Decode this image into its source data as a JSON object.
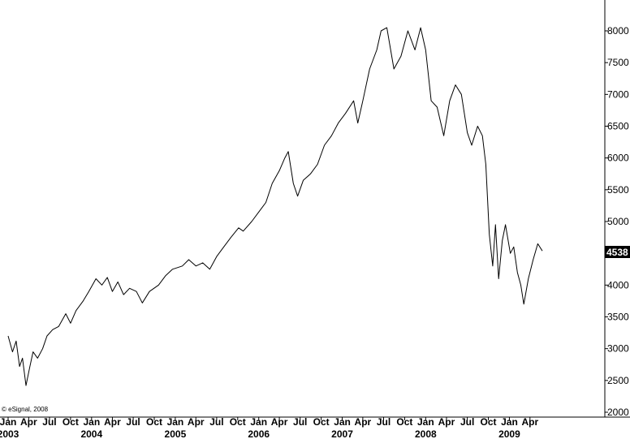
{
  "credit": "© eSignal, 2008",
  "chart_data": {
    "type": "line",
    "title": "",
    "xlabel": "",
    "ylabel": "",
    "ylim": [
      2000,
      8300
    ],
    "xlim": [
      "2003-01-01",
      "2009-05-25"
    ],
    "y_ticks": [
      2000,
      2500,
      3000,
      3500,
      4000,
      4500,
      5000,
      5500,
      6000,
      6500,
      7000,
      7500,
      8000
    ],
    "x_month_ticks": [
      {
        "label": "Jan",
        "date": "2003-01-01"
      },
      {
        "label": "Apr",
        "date": "2003-04-01"
      },
      {
        "label": "Jul",
        "date": "2003-07-01"
      },
      {
        "label": "Oct",
        "date": "2003-10-01"
      },
      {
        "label": "Jan",
        "date": "2004-01-01"
      },
      {
        "label": "Apr",
        "date": "2004-04-01"
      },
      {
        "label": "Jul",
        "date": "2004-07-01"
      },
      {
        "label": "Oct",
        "date": "2004-10-01"
      },
      {
        "label": "Jan",
        "date": "2005-01-01"
      },
      {
        "label": "Apr",
        "date": "2005-04-01"
      },
      {
        "label": "Jul",
        "date": "2005-07-01"
      },
      {
        "label": "Oct",
        "date": "2005-10-01"
      },
      {
        "label": "Jan",
        "date": "2006-01-01"
      },
      {
        "label": "Apr",
        "date": "2006-04-01"
      },
      {
        "label": "Jul",
        "date": "2006-07-01"
      },
      {
        "label": "Oct",
        "date": "2006-10-01"
      },
      {
        "label": "Jan",
        "date": "2007-01-01"
      },
      {
        "label": "Apr",
        "date": "2007-04-01"
      },
      {
        "label": "Jul",
        "date": "2007-07-01"
      },
      {
        "label": "Oct",
        "date": "2007-10-01"
      },
      {
        "label": "Jan",
        "date": "2008-01-01"
      },
      {
        "label": "Apr",
        "date": "2008-04-01"
      },
      {
        "label": "Jul",
        "date": "2008-07-01"
      },
      {
        "label": "Oct",
        "date": "2008-10-01"
      },
      {
        "label": "Jan",
        "date": "2009-01-01"
      },
      {
        "label": "Apr",
        "date": "2009-04-01"
      }
    ],
    "x_year_labels": [
      {
        "label": "2003",
        "date": "2003-01-01"
      },
      {
        "label": "2004",
        "date": "2004-01-01"
      },
      {
        "label": "2005",
        "date": "2005-01-01"
      },
      {
        "label": "2006",
        "date": "2006-01-01"
      },
      {
        "label": "2007",
        "date": "2007-01-01"
      },
      {
        "label": "2008",
        "date": "2008-01-01"
      },
      {
        "label": "2009",
        "date": "2009-01-01"
      }
    ],
    "last_value": "4538",
    "series": [
      {
        "color": "#000000",
        "points": [
          [
            "2003-01-01",
            3200
          ],
          [
            "2003-01-20",
            2950
          ],
          [
            "2003-02-05",
            3120
          ],
          [
            "2003-02-20",
            2720
          ],
          [
            "2003-03-05",
            2850
          ],
          [
            "2003-03-20",
            2420
          ],
          [
            "2003-04-05",
            2700
          ],
          [
            "2003-04-20",
            2950
          ],
          [
            "2003-05-10",
            2850
          ],
          [
            "2003-06-01",
            3000
          ],
          [
            "2003-06-20",
            3200
          ],
          [
            "2003-07-15",
            3300
          ],
          [
            "2003-08-10",
            3350
          ],
          [
            "2003-09-10",
            3550
          ],
          [
            "2003-10-01",
            3400
          ],
          [
            "2003-10-25",
            3600
          ],
          [
            "2003-11-25",
            3750
          ],
          [
            "2003-12-20",
            3900
          ],
          [
            "2004-01-20",
            4100
          ],
          [
            "2004-02-15",
            4000
          ],
          [
            "2004-03-10",
            4120
          ],
          [
            "2004-04-01",
            3900
          ],
          [
            "2004-04-25",
            4050
          ],
          [
            "2004-05-20",
            3850
          ],
          [
            "2004-06-15",
            3950
          ],
          [
            "2004-07-15",
            3900
          ],
          [
            "2004-08-10",
            3720
          ],
          [
            "2004-09-10",
            3900
          ],
          [
            "2004-10-20",
            4000
          ],
          [
            "2004-11-20",
            4150
          ],
          [
            "2004-12-20",
            4250
          ],
          [
            "2005-02-01",
            4300
          ],
          [
            "2005-03-01",
            4400
          ],
          [
            "2005-04-01",
            4300
          ],
          [
            "2005-05-01",
            4350
          ],
          [
            "2005-06-01",
            4250
          ],
          [
            "2005-07-01",
            4450
          ],
          [
            "2005-08-01",
            4600
          ],
          [
            "2005-09-01",
            4750
          ],
          [
            "2005-10-05",
            4900
          ],
          [
            "2005-10-25",
            4850
          ],
          [
            "2005-12-01",
            5000
          ],
          [
            "2006-01-01",
            5150
          ],
          [
            "2006-02-01",
            5300
          ],
          [
            "2006-03-01",
            5600
          ],
          [
            "2006-04-01",
            5800
          ],
          [
            "2006-04-25",
            6000
          ],
          [
            "2006-05-10",
            6100
          ],
          [
            "2006-06-01",
            5600
          ],
          [
            "2006-06-20",
            5400
          ],
          [
            "2006-07-15",
            5650
          ],
          [
            "2006-08-15",
            5750
          ],
          [
            "2006-09-15",
            5900
          ],
          [
            "2006-10-15",
            6200
          ],
          [
            "2006-11-15",
            6350
          ],
          [
            "2006-12-15",
            6550
          ],
          [
            "2007-01-15",
            6700
          ],
          [
            "2007-02-20",
            6900
          ],
          [
            "2007-03-10",
            6550
          ],
          [
            "2007-04-01",
            6900
          ],
          [
            "2007-05-01",
            7400
          ],
          [
            "2007-06-01",
            7700
          ],
          [
            "2007-06-20",
            8000
          ],
          [
            "2007-07-15",
            8050
          ],
          [
            "2007-08-15",
            7400
          ],
          [
            "2007-09-15",
            7600
          ],
          [
            "2007-10-15",
            8000
          ],
          [
            "2007-11-15",
            7700
          ],
          [
            "2007-12-10",
            8050
          ],
          [
            "2008-01-01",
            7700
          ],
          [
            "2008-01-25",
            6900
          ],
          [
            "2008-02-20",
            6800
          ],
          [
            "2008-03-20",
            6350
          ],
          [
            "2008-04-15",
            6900
          ],
          [
            "2008-05-10",
            7150
          ],
          [
            "2008-06-05",
            7000
          ],
          [
            "2008-07-01",
            6400
          ],
          [
            "2008-07-20",
            6200
          ],
          [
            "2008-08-15",
            6500
          ],
          [
            "2008-09-05",
            6350
          ],
          [
            "2008-09-20",
            5900
          ],
          [
            "2008-10-05",
            4800
          ],
          [
            "2008-10-20",
            4300
          ],
          [
            "2008-11-01",
            4950
          ],
          [
            "2008-11-15",
            4100
          ],
          [
            "2008-12-01",
            4700
          ],
          [
            "2008-12-15",
            4950
          ],
          [
            "2009-01-05",
            4500
          ],
          [
            "2009-01-20",
            4600
          ],
          [
            "2009-02-05",
            4200
          ],
          [
            "2009-02-20",
            4000
          ],
          [
            "2009-03-05",
            3700
          ],
          [
            "2009-03-25",
            4100
          ],
          [
            "2009-04-15",
            4400
          ],
          [
            "2009-05-05",
            4650
          ],
          [
            "2009-05-25",
            4538
          ]
        ]
      }
    ]
  }
}
